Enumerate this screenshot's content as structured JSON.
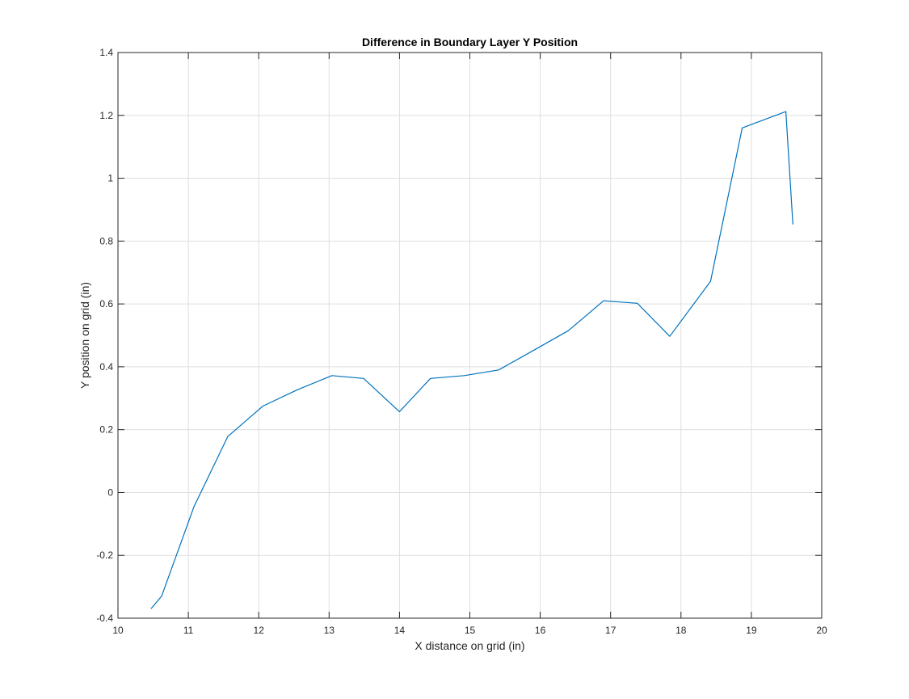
{
  "chart_data": {
    "type": "line",
    "title": "Difference in Boundary Layer Y Position",
    "xlabel": "X distance on grid (in)",
    "ylabel": "Y position on grid (in)",
    "xlim": [
      10,
      20
    ],
    "ylim": [
      -0.4,
      1.4
    ],
    "xticks": [
      "10",
      "11",
      "12",
      "13",
      "14",
      "15",
      "16",
      "17",
      "18",
      "19",
      "20"
    ],
    "yticks": [
      "-0.4",
      "-0.2",
      "0",
      "0.2",
      "0.4",
      "0.6",
      "0.8",
      "1",
      "1.2",
      "1.4"
    ],
    "grid": true,
    "series": [
      {
        "color": "#0072BD",
        "x": [
          10.47,
          10.62,
          11.08,
          11.56,
          12.06,
          12.55,
          13.04,
          13.49,
          14.0,
          14.44,
          14.92,
          15.41,
          15.91,
          16.4,
          16.9,
          17.38,
          17.84,
          18.42,
          18.87,
          19.49,
          19.59
        ],
        "y": [
          -0.37,
          -0.33,
          -0.045,
          0.178,
          0.275,
          0.327,
          0.372,
          0.363,
          0.257,
          0.363,
          0.372,
          0.39,
          0.453,
          0.515,
          0.61,
          0.602,
          0.497,
          0.672,
          1.16,
          1.212,
          0.853
        ]
      }
    ]
  }
}
